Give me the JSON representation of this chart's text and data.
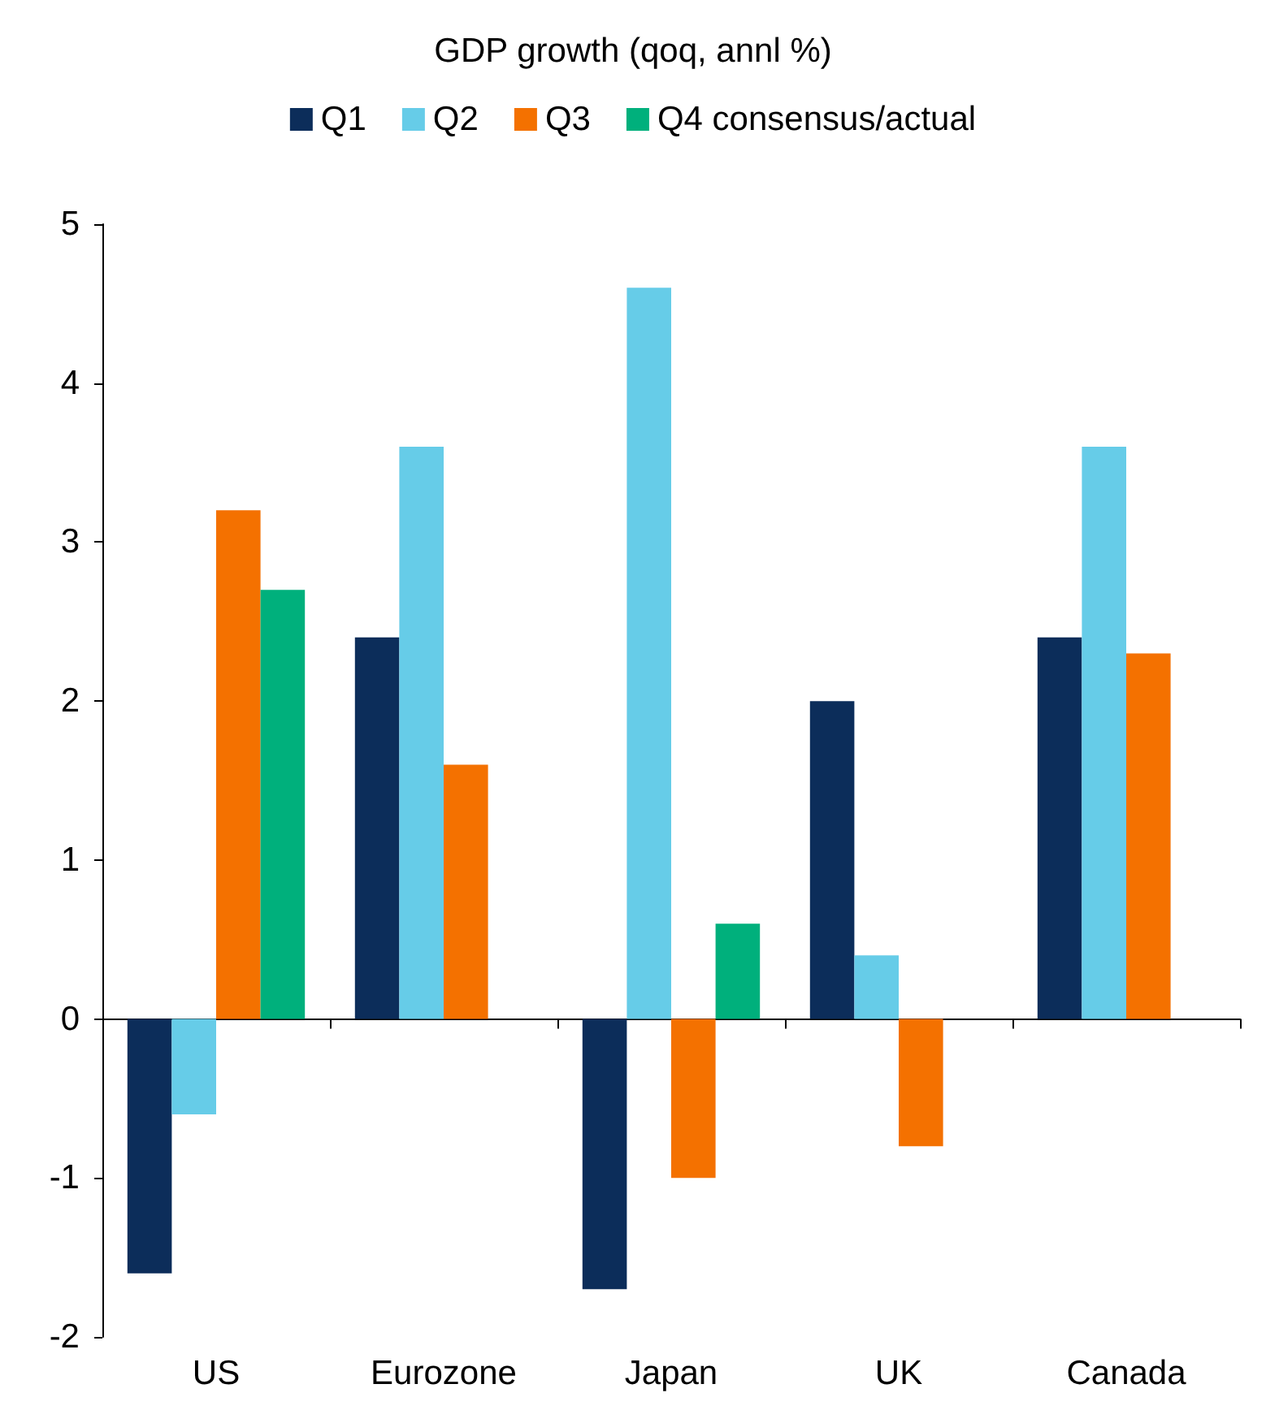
{
  "chart_data": {
    "type": "bar",
    "title": "GDP growth (qoq, annl %)",
    "categories": [
      "US",
      "Eurozone",
      "Japan",
      "UK",
      "Canada"
    ],
    "series": [
      {
        "name": "Q1",
        "color": "#0c2d5a",
        "values": [
          -1.6,
          2.4,
          -1.7,
          2.0,
          2.4
        ]
      },
      {
        "name": "Q2",
        "color": "#66cce8",
        "values": [
          -0.6,
          3.6,
          4.6,
          0.4,
          3.6
        ]
      },
      {
        "name": "Q3",
        "color": "#f47100",
        "values": [
          3.2,
          1.6,
          -1.0,
          -0.8,
          2.3
        ]
      },
      {
        "name": "Q4 consensus/actual",
        "color": "#00b07c",
        "values": [
          2.7,
          null,
          0.6,
          null,
          null
        ]
      }
    ],
    "ylim": [
      -2,
      5
    ],
    "yticks": [
      -2,
      -1,
      0,
      1,
      2,
      3,
      4,
      5
    ],
    "legend": "top"
  }
}
